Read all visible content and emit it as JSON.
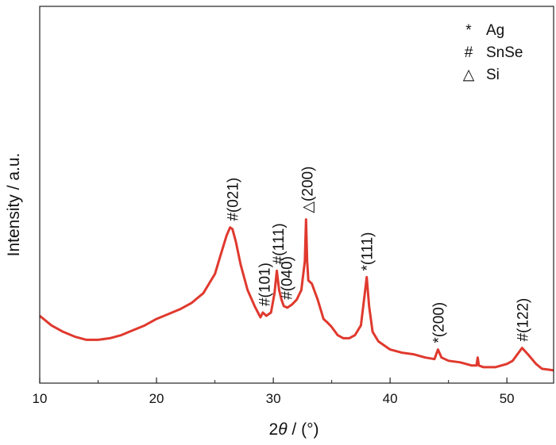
{
  "chart_data": {
    "type": "line",
    "title": "",
    "xlabel_prefix": "2",
    "xlabel_symbol": "θ",
    "xlabel_suffix": " / (°)",
    "ylabel": "Intensity / a.u.",
    "xlim": [
      10,
      54
    ],
    "ylim": [
      0,
      100
    ],
    "x_ticks": [
      10,
      20,
      30,
      40,
      50
    ],
    "y_ticks_labeled": false,
    "grid": false,
    "line_color": "#e0392e",
    "series": [
      {
        "x": [
          10,
          11,
          12,
          13,
          14,
          15,
          16,
          17,
          18,
          19,
          20,
          21,
          22,
          23,
          24,
          25,
          25.5,
          26,
          26.3,
          26.5,
          26.8,
          27.2,
          27.8,
          28.4,
          28.9,
          29.1,
          29.4,
          29.8,
          30.1,
          30.3,
          30.5,
          30.7,
          30.9,
          31.2,
          31.6,
          32.0,
          32.4,
          32.7,
          32.8,
          32.9,
          33.0,
          33.3,
          33.8,
          34.3,
          34.6,
          35.0,
          35.5,
          36.0,
          36.5,
          37.0,
          37.5,
          37.8,
          38.0,
          38.2,
          38.5,
          39.0,
          40.0,
          41.0,
          42.0,
          43.0,
          43.8,
          44.1,
          44.4,
          45.0,
          46.0,
          47.0,
          47.4,
          47.5,
          47.6,
          48.0,
          49.0,
          50.0,
          50.5,
          51.0,
          51.3,
          51.8,
          52.5,
          53.0,
          54.0
        ],
        "y": [
          19,
          16,
          14,
          12.5,
          11.5,
          11.5,
          12,
          13,
          14.5,
          16,
          18,
          19.5,
          21,
          23,
          26,
          32,
          38,
          44,
          46.5,
          46,
          42,
          35,
          27,
          22,
          18.5,
          20,
          19,
          20,
          26,
          33,
          27,
          24,
          22,
          21.5,
          22.5,
          24,
          27,
          36,
          49,
          36,
          30,
          29,
          24,
          18,
          17,
          15.5,
          13,
          12,
          12,
          13,
          16,
          25,
          31,
          22,
          14,
          11,
          8.5,
          7.5,
          7,
          6,
          5.5,
          8.5,
          6,
          5,
          4.5,
          3.5,
          3.5,
          6,
          3.5,
          3,
          3,
          4,
          5,
          7.5,
          9,
          7,
          4,
          2.5,
          2
        ]
      }
    ],
    "legend": {
      "placement": "top-right",
      "items": [
        {
          "marker": "*",
          "label": "Ag"
        },
        {
          "marker": "#",
          "label": "SnSe"
        },
        {
          "marker": "△",
          "label": "Si"
        }
      ]
    },
    "annotations": [
      {
        "x": 26.5,
        "y": 46.5,
        "marker": "#",
        "text": "(021)"
      },
      {
        "x": 29.2,
        "y": 20,
        "marker": "#",
        "text": "(101)"
      },
      {
        "x": 30.4,
        "y": 33,
        "marker": "#",
        "text": "(111)"
      },
      {
        "x": 31.1,
        "y": 22,
        "marker": "#",
        "text": "(040)"
      },
      {
        "x": 32.9,
        "y": 49,
        "marker": "△",
        "text": "(200)"
      },
      {
        "x": 38.0,
        "y": 31,
        "marker": "*",
        "text": "(111)"
      },
      {
        "x": 44.1,
        "y": 8.5,
        "marker": "*",
        "text": "(200)"
      },
      {
        "x": 51.3,
        "y": 9,
        "marker": "#",
        "text": "(122)"
      }
    ]
  }
}
